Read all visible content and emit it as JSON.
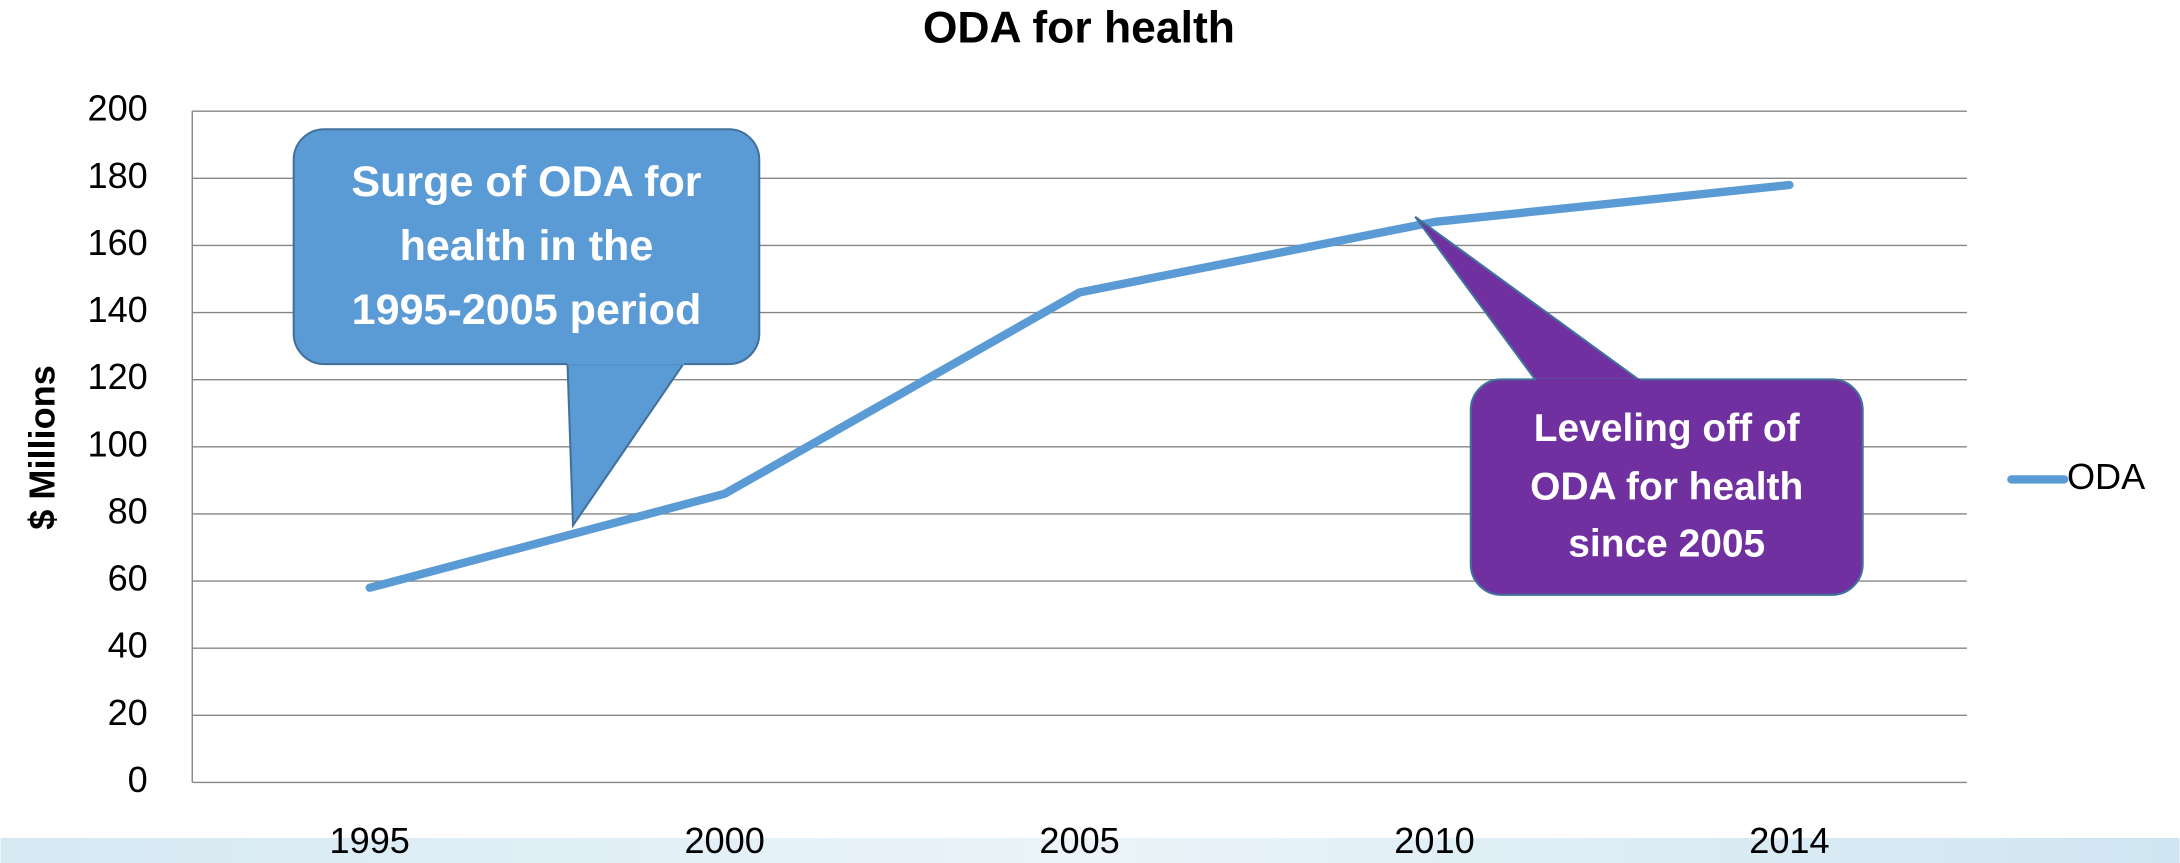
{
  "chart_data": {
    "type": "line",
    "title": "ODA for health",
    "y_label": "$ Millions",
    "categories": [
      "1995",
      "2000",
      "2005",
      "2010",
      "2014"
    ],
    "series": [
      {
        "name": "ODA",
        "color": "#5b9bd5",
        "values": [
          58,
          86,
          146,
          167,
          178
        ]
      }
    ],
    "ylim": [
      0,
      200
    ],
    "yticks": [
      0,
      20,
      40,
      60,
      80,
      100,
      120,
      140,
      160,
      180,
      200
    ],
    "grid": true,
    "legend": "right",
    "annotations": [
      {
        "lines": [
          "Surge of ODA for",
          "health in the",
          "1995-2005 period"
        ],
        "color": "#5b9bd5"
      },
      {
        "lines": [
          "Leveling off of",
          "ODA for health",
          "since 2005"
        ],
        "color": "#7030a0"
      }
    ]
  }
}
